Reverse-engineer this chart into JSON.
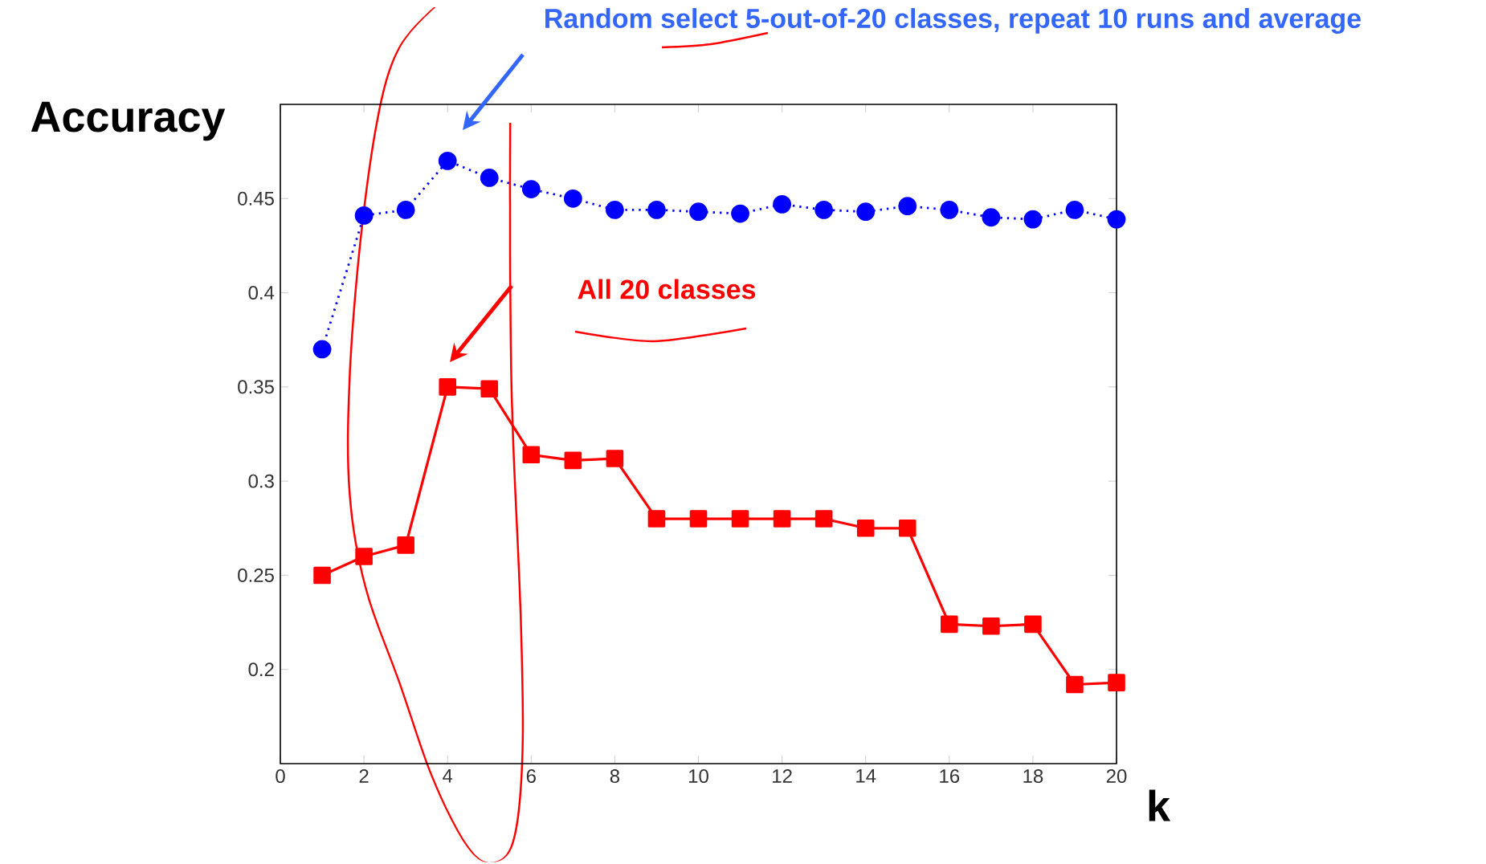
{
  "chart_data": {
    "type": "line",
    "xlabel": "k",
    "ylabel": "Accuracy",
    "x": [
      1,
      2,
      3,
      4,
      5,
      6,
      7,
      8,
      9,
      10,
      11,
      12,
      13,
      14,
      15,
      16,
      17,
      18,
      19,
      20
    ],
    "xlim": [
      0,
      20
    ],
    "xticks": [
      0,
      2,
      4,
      6,
      8,
      10,
      12,
      14,
      16,
      18,
      20
    ],
    "ylim": [
      0.15,
      0.5
    ],
    "yticks": [
      0.2,
      0.25,
      0.3,
      0.35,
      0.4,
      0.45,
      {
        "value": 0.5,
        "label": null
      }
    ],
    "grid": false,
    "series": [
      {
        "color": "#0000ff",
        "marker": "circle",
        "line_style": "dotted",
        "values": [
          0.37,
          0.441,
          0.444,
          0.47,
          0.461,
          0.455,
          0.45,
          0.444,
          0.444,
          0.443,
          0.442,
          0.447,
          0.444,
          0.443,
          0.446,
          0.444,
          0.44,
          0.439,
          0.444,
          0.439
        ]
      },
      {
        "color": "#ff0000",
        "marker": "square",
        "line_style": "solid",
        "values": [
          0.25,
          0.26,
          0.266,
          0.35,
          0.349,
          0.314,
          0.311,
          0.312,
          0.28,
          0.28,
          0.28,
          0.28,
          0.28,
          0.275,
          0.275,
          0.224,
          0.223,
          0.224,
          0.192,
          0.193
        ]
      }
    ],
    "annotations": [
      "Random select 5-out-of-20 classes, repeat 10 runs and average",
      "All 20 classes"
    ]
  }
}
